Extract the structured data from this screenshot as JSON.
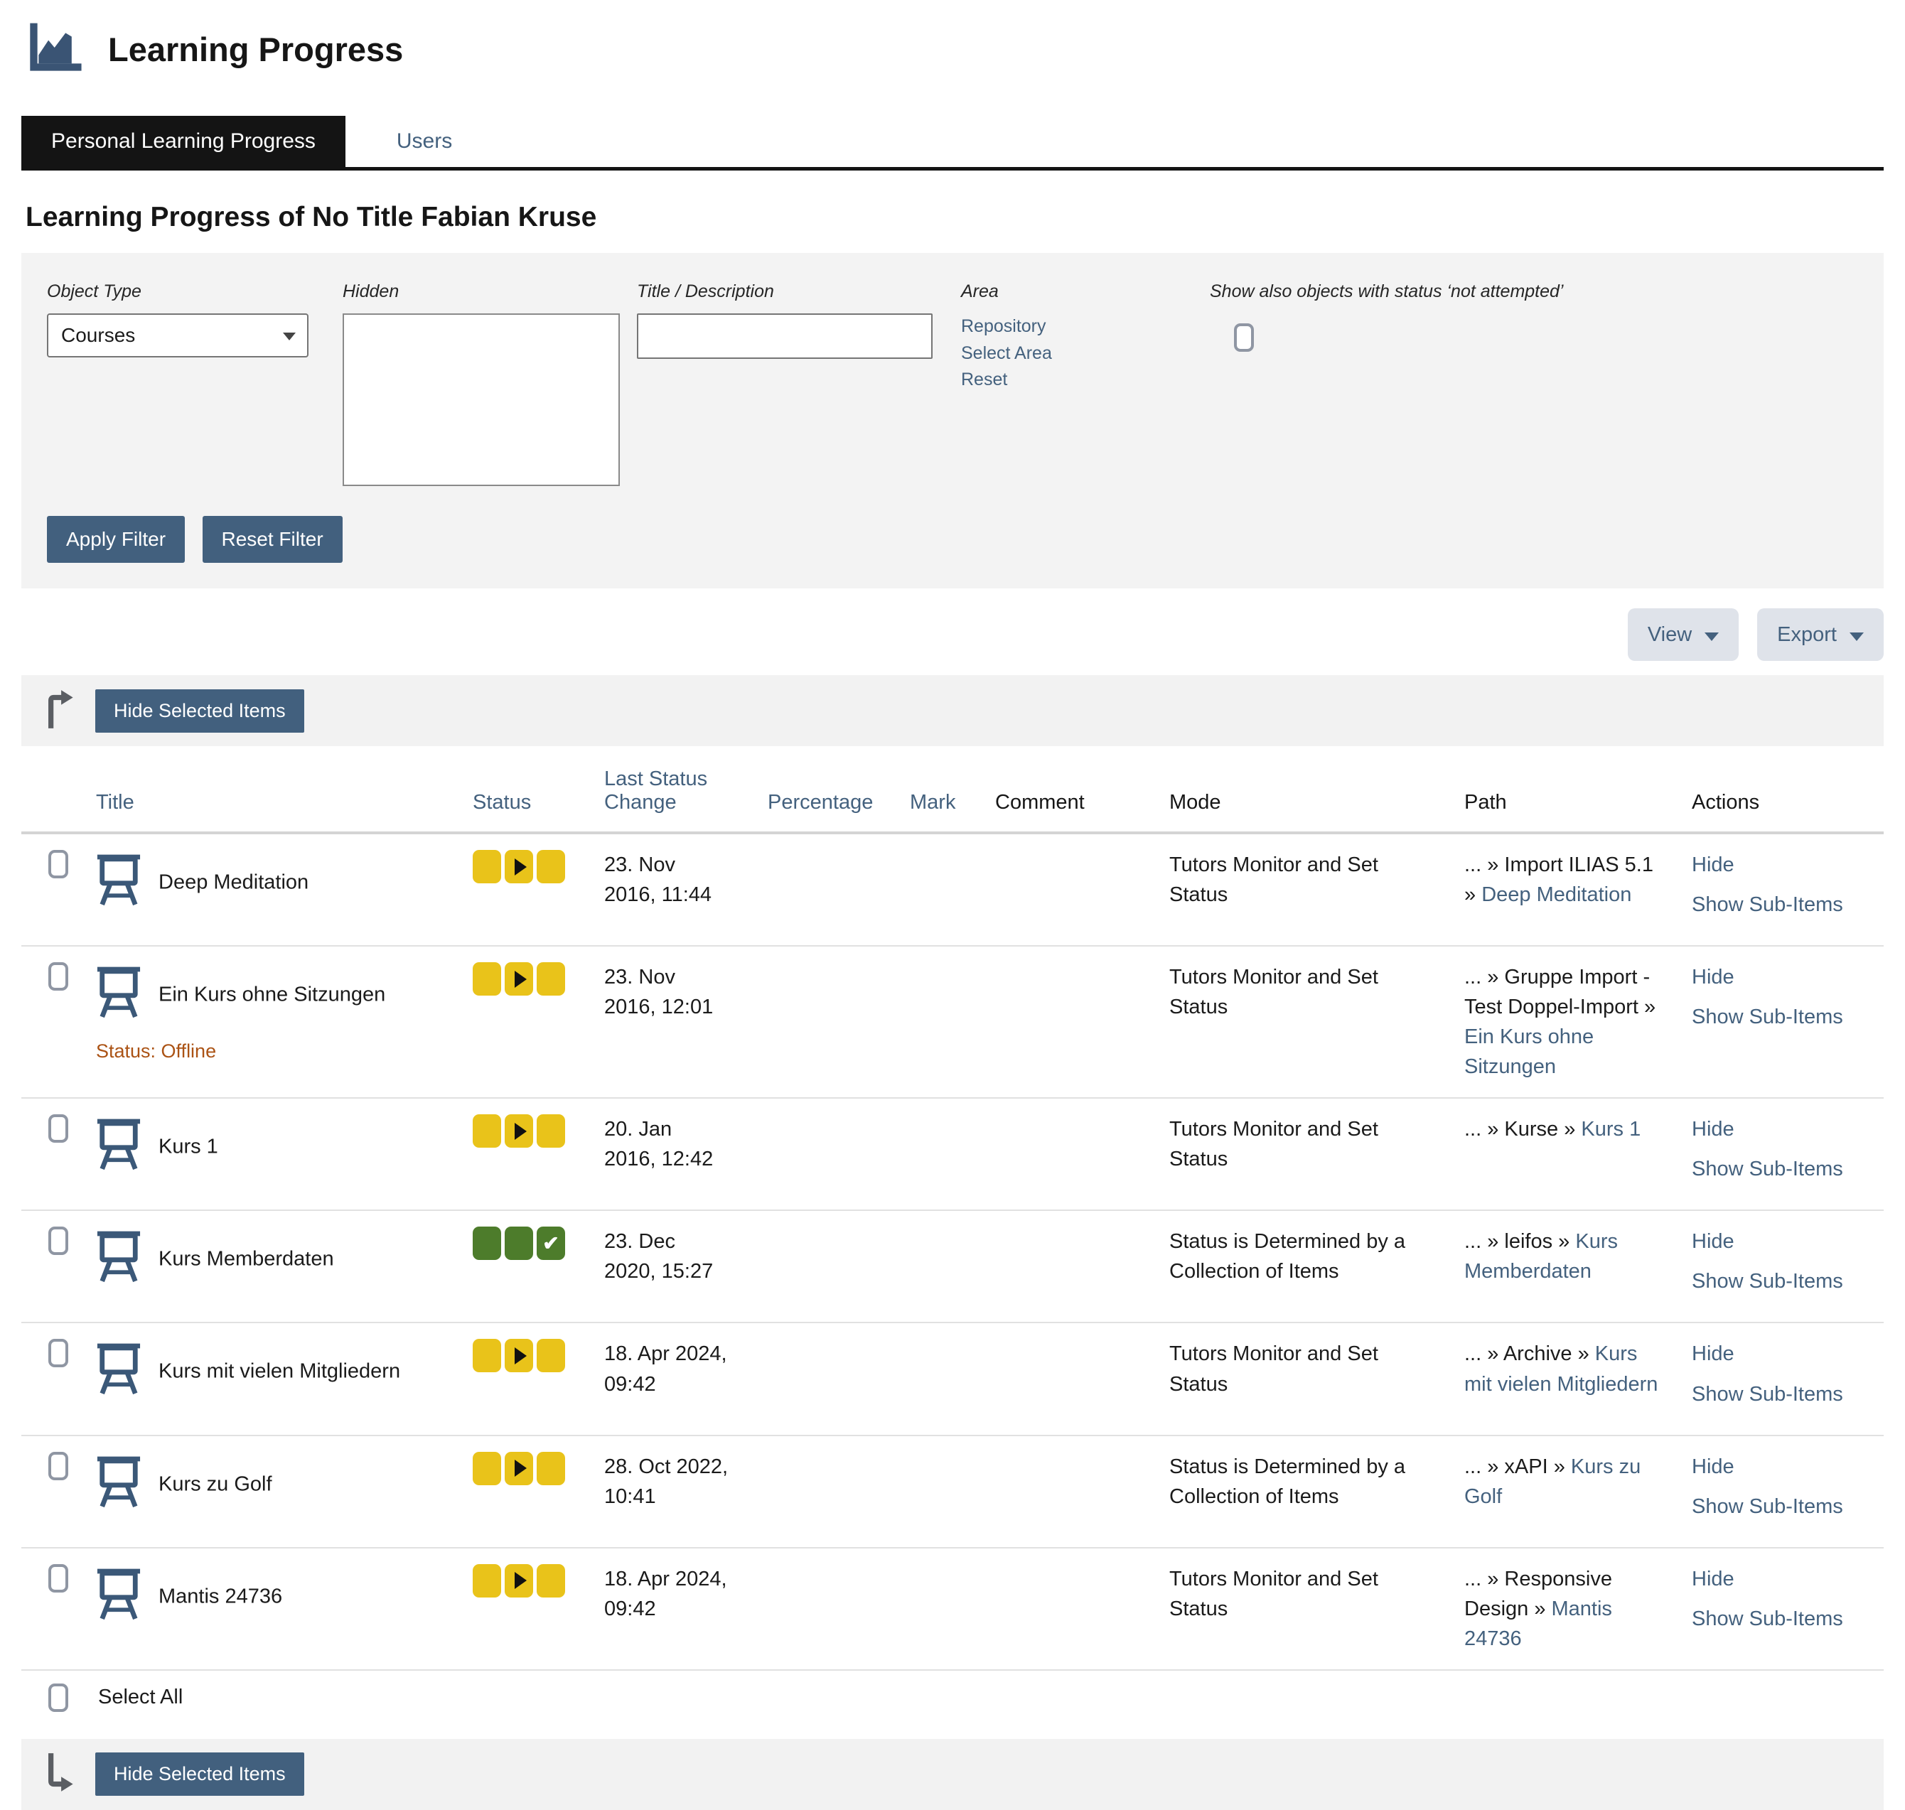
{
  "header": {
    "title": "Learning Progress"
  },
  "tabs": [
    {
      "label": "Personal Learning Progress",
      "active": true
    },
    {
      "label": "Users",
      "active": false
    }
  ],
  "page_heading": "Learning Progress of No Title Fabian Kruse",
  "filter": {
    "object_type_label": "Object Type",
    "object_type_value": "Courses",
    "hidden_label": "Hidden",
    "title_desc_label": "Title / Description",
    "title_desc_value": "",
    "area_label": "Area",
    "area_links": [
      "Repository",
      "Select Area",
      "Reset"
    ],
    "not_attempted_label": "Show also objects with status ‘not attempted’",
    "not_attempted_checked": false,
    "apply_label": "Apply Filter",
    "reset_label": "Reset Filter"
  },
  "toolbar": {
    "view_label": "View",
    "export_label": "Export",
    "hide_selected_label": "Hide Selected Items"
  },
  "icons": {
    "app": "line-chart-icon",
    "course": "course-board-icon",
    "top_bar_arrow": "arrow-turn-up-right-icon",
    "bottom_bar_arrow": "arrow-turn-down-right-icon",
    "dropdown": "chevron-down-icon"
  },
  "colors": {
    "accent_button": "#42607e",
    "link": "#44617e",
    "active_tab_bg": "#141414",
    "status_in_progress": "#e9c31a",
    "status_completed": "#4d7c2b",
    "offline_note": "#ab5315",
    "panel_bg": "#f3f3f3"
  },
  "table": {
    "columns": [
      {
        "label": "Title",
        "sortable": true
      },
      {
        "label": "Status",
        "sortable": true
      },
      {
        "label": "Last Status Change",
        "sortable": true
      },
      {
        "label": "Percentage",
        "sortable": true
      },
      {
        "label": "Mark",
        "sortable": true
      },
      {
        "label": "Comment",
        "sortable": false
      },
      {
        "label": "Mode",
        "sortable": false
      },
      {
        "label": "Path",
        "sortable": false
      },
      {
        "label": "Actions",
        "sortable": false
      }
    ],
    "rows": [
      {
        "title": "Deep Meditation",
        "status": "in_progress",
        "last_change": "23. Nov 2016, 11:44",
        "percentage": "",
        "mark": "",
        "comment": "",
        "mode": "Tutors Monitor and Set Status",
        "path_prefix": "... » Import ILIAS 5.1 » ",
        "path_link": "Deep Meditation",
        "actions": [
          "Hide",
          "Show Sub-Items"
        ]
      },
      {
        "title": "Ein Kurs ohne Sitzungen",
        "status_note": "Status: Offline",
        "status": "in_progress",
        "last_change": "23. Nov 2016, 12:01",
        "percentage": "",
        "mark": "",
        "comment": "",
        "mode": "Tutors Monitor and Set Status",
        "path_prefix": "... » Gruppe Import - Test Doppel-Import » ",
        "path_link": "Ein Kurs ohne Sitzungen",
        "actions": [
          "Hide",
          "Show Sub-Items"
        ]
      },
      {
        "title": "Kurs 1",
        "status": "in_progress",
        "last_change": "20. Jan 2016, 12:42",
        "percentage": "",
        "mark": "",
        "comment": "",
        "mode": "Tutors Monitor and Set Status",
        "path_prefix": "... » Kurse » ",
        "path_link": "Kurs 1",
        "actions": [
          "Hide",
          "Show Sub-Items"
        ]
      },
      {
        "title": "Kurs Memberdaten",
        "status": "completed",
        "last_change": "23. Dec 2020, 15:27",
        "percentage": "",
        "mark": "",
        "comment": "",
        "mode": "Status is Determined by a Collection of Items",
        "path_prefix": "... » leifos » ",
        "path_link": "Kurs Memberdaten",
        "actions": [
          "Hide",
          "Show Sub-Items"
        ]
      },
      {
        "title": "Kurs mit vielen Mitgliedern",
        "status": "in_progress",
        "last_change": "18. Apr 2024, 09:42",
        "percentage": "",
        "mark": "",
        "comment": "",
        "mode": "Tutors Monitor and Set Status",
        "path_prefix": "... » Archive » ",
        "path_link": "Kurs mit vielen Mitgliedern",
        "actions": [
          "Hide",
          "Show Sub-Items"
        ]
      },
      {
        "title": "Kurs zu Golf",
        "status": "in_progress",
        "last_change": "28. Oct 2022, 10:41",
        "percentage": "",
        "mark": "",
        "comment": "",
        "mode": "Status is Determined by a Collection of Items",
        "path_prefix": "... » xAPI » ",
        "path_link": "Kurs zu Golf",
        "actions": [
          "Hide",
          "Show Sub-Items"
        ]
      },
      {
        "title": "Mantis 24736",
        "status": "in_progress",
        "last_change": "18. Apr 2024, 09:42",
        "percentage": "",
        "mark": "",
        "comment": "",
        "mode": "Tutors Monitor and Set Status",
        "path_prefix": "... » Responsive Design » ",
        "path_link": "Mantis 24736",
        "actions": [
          "Hide",
          "Show Sub-Items"
        ]
      }
    ],
    "select_all_label": "Select All"
  }
}
